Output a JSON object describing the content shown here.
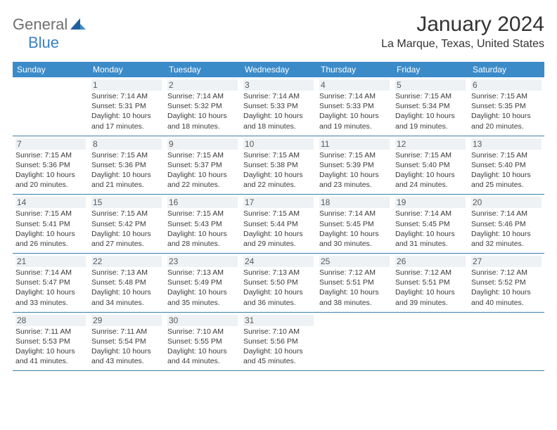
{
  "logo": {
    "part1": "General",
    "part2": "Blue"
  },
  "title": "January 2024",
  "location": "La Marque, Texas, United States",
  "colors": {
    "header_bg": "#3b8bc9",
    "header_text": "#ffffff",
    "border": "#3b7fa8",
    "daynum_bg": "#eef2f5",
    "text": "#3a3a3a",
    "logo_gray": "#6f6f6f",
    "logo_blue": "#3b7fc4"
  },
  "weekdays": [
    "Sunday",
    "Monday",
    "Tuesday",
    "Wednesday",
    "Thursday",
    "Friday",
    "Saturday"
  ],
  "weeks": [
    [
      {
        "blank": true
      },
      {
        "num": "1",
        "sunrise": "Sunrise: 7:14 AM",
        "sunset": "Sunset: 5:31 PM",
        "day1": "Daylight: 10 hours",
        "day2": "and 17 minutes."
      },
      {
        "num": "2",
        "sunrise": "Sunrise: 7:14 AM",
        "sunset": "Sunset: 5:32 PM",
        "day1": "Daylight: 10 hours",
        "day2": "and 18 minutes."
      },
      {
        "num": "3",
        "sunrise": "Sunrise: 7:14 AM",
        "sunset": "Sunset: 5:33 PM",
        "day1": "Daylight: 10 hours",
        "day2": "and 18 minutes."
      },
      {
        "num": "4",
        "sunrise": "Sunrise: 7:14 AM",
        "sunset": "Sunset: 5:33 PM",
        "day1": "Daylight: 10 hours",
        "day2": "and 19 minutes."
      },
      {
        "num": "5",
        "sunrise": "Sunrise: 7:15 AM",
        "sunset": "Sunset: 5:34 PM",
        "day1": "Daylight: 10 hours",
        "day2": "and 19 minutes."
      },
      {
        "num": "6",
        "sunrise": "Sunrise: 7:15 AM",
        "sunset": "Sunset: 5:35 PM",
        "day1": "Daylight: 10 hours",
        "day2": "and 20 minutes."
      }
    ],
    [
      {
        "num": "7",
        "sunrise": "Sunrise: 7:15 AM",
        "sunset": "Sunset: 5:36 PM",
        "day1": "Daylight: 10 hours",
        "day2": "and 20 minutes."
      },
      {
        "num": "8",
        "sunrise": "Sunrise: 7:15 AM",
        "sunset": "Sunset: 5:36 PM",
        "day1": "Daylight: 10 hours",
        "day2": "and 21 minutes."
      },
      {
        "num": "9",
        "sunrise": "Sunrise: 7:15 AM",
        "sunset": "Sunset: 5:37 PM",
        "day1": "Daylight: 10 hours",
        "day2": "and 22 minutes."
      },
      {
        "num": "10",
        "sunrise": "Sunrise: 7:15 AM",
        "sunset": "Sunset: 5:38 PM",
        "day1": "Daylight: 10 hours",
        "day2": "and 22 minutes."
      },
      {
        "num": "11",
        "sunrise": "Sunrise: 7:15 AM",
        "sunset": "Sunset: 5:39 PM",
        "day1": "Daylight: 10 hours",
        "day2": "and 23 minutes."
      },
      {
        "num": "12",
        "sunrise": "Sunrise: 7:15 AM",
        "sunset": "Sunset: 5:40 PM",
        "day1": "Daylight: 10 hours",
        "day2": "and 24 minutes."
      },
      {
        "num": "13",
        "sunrise": "Sunrise: 7:15 AM",
        "sunset": "Sunset: 5:40 PM",
        "day1": "Daylight: 10 hours",
        "day2": "and 25 minutes."
      }
    ],
    [
      {
        "num": "14",
        "sunrise": "Sunrise: 7:15 AM",
        "sunset": "Sunset: 5:41 PM",
        "day1": "Daylight: 10 hours",
        "day2": "and 26 minutes."
      },
      {
        "num": "15",
        "sunrise": "Sunrise: 7:15 AM",
        "sunset": "Sunset: 5:42 PM",
        "day1": "Daylight: 10 hours",
        "day2": "and 27 minutes."
      },
      {
        "num": "16",
        "sunrise": "Sunrise: 7:15 AM",
        "sunset": "Sunset: 5:43 PM",
        "day1": "Daylight: 10 hours",
        "day2": "and 28 minutes."
      },
      {
        "num": "17",
        "sunrise": "Sunrise: 7:15 AM",
        "sunset": "Sunset: 5:44 PM",
        "day1": "Daylight: 10 hours",
        "day2": "and 29 minutes."
      },
      {
        "num": "18",
        "sunrise": "Sunrise: 7:14 AM",
        "sunset": "Sunset: 5:45 PM",
        "day1": "Daylight: 10 hours",
        "day2": "and 30 minutes."
      },
      {
        "num": "19",
        "sunrise": "Sunrise: 7:14 AM",
        "sunset": "Sunset: 5:45 PM",
        "day1": "Daylight: 10 hours",
        "day2": "and 31 minutes."
      },
      {
        "num": "20",
        "sunrise": "Sunrise: 7:14 AM",
        "sunset": "Sunset: 5:46 PM",
        "day1": "Daylight: 10 hours",
        "day2": "and 32 minutes."
      }
    ],
    [
      {
        "num": "21",
        "sunrise": "Sunrise: 7:14 AM",
        "sunset": "Sunset: 5:47 PM",
        "day1": "Daylight: 10 hours",
        "day2": "and 33 minutes."
      },
      {
        "num": "22",
        "sunrise": "Sunrise: 7:13 AM",
        "sunset": "Sunset: 5:48 PM",
        "day1": "Daylight: 10 hours",
        "day2": "and 34 minutes."
      },
      {
        "num": "23",
        "sunrise": "Sunrise: 7:13 AM",
        "sunset": "Sunset: 5:49 PM",
        "day1": "Daylight: 10 hours",
        "day2": "and 35 minutes."
      },
      {
        "num": "24",
        "sunrise": "Sunrise: 7:13 AM",
        "sunset": "Sunset: 5:50 PM",
        "day1": "Daylight: 10 hours",
        "day2": "and 36 minutes."
      },
      {
        "num": "25",
        "sunrise": "Sunrise: 7:12 AM",
        "sunset": "Sunset: 5:51 PM",
        "day1": "Daylight: 10 hours",
        "day2": "and 38 minutes."
      },
      {
        "num": "26",
        "sunrise": "Sunrise: 7:12 AM",
        "sunset": "Sunset: 5:51 PM",
        "day1": "Daylight: 10 hours",
        "day2": "and 39 minutes."
      },
      {
        "num": "27",
        "sunrise": "Sunrise: 7:12 AM",
        "sunset": "Sunset: 5:52 PM",
        "day1": "Daylight: 10 hours",
        "day2": "and 40 minutes."
      }
    ],
    [
      {
        "num": "28",
        "sunrise": "Sunrise: 7:11 AM",
        "sunset": "Sunset: 5:53 PM",
        "day1": "Daylight: 10 hours",
        "day2": "and 41 minutes."
      },
      {
        "num": "29",
        "sunrise": "Sunrise: 7:11 AM",
        "sunset": "Sunset: 5:54 PM",
        "day1": "Daylight: 10 hours",
        "day2": "and 43 minutes."
      },
      {
        "num": "30",
        "sunrise": "Sunrise: 7:10 AM",
        "sunset": "Sunset: 5:55 PM",
        "day1": "Daylight: 10 hours",
        "day2": "and 44 minutes."
      },
      {
        "num": "31",
        "sunrise": "Sunrise: 7:10 AM",
        "sunset": "Sunset: 5:56 PM",
        "day1": "Daylight: 10 hours",
        "day2": "and 45 minutes."
      },
      {
        "blank": true
      },
      {
        "blank": true
      },
      {
        "blank": true
      }
    ]
  ]
}
